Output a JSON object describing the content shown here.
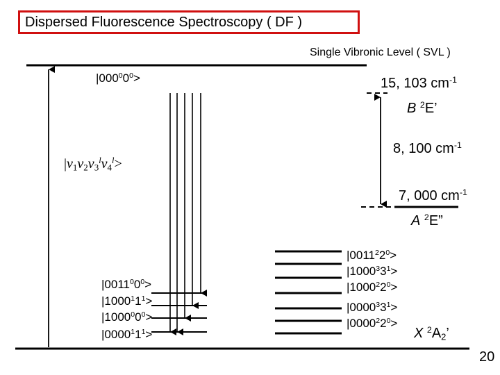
{
  "title": "Dispersed Fluorescence Spectroscopy ( DF )",
  "svl_label": "Single Vibronic Level ( SVL )",
  "excited_level": {
    "state": "|000",
    "sup1": "0",
    "mid": "0",
    "sup2": "0",
    "tail": ">"
  },
  "generic_level": {
    "open": "|",
    "nu": "ν",
    "s1": "1",
    "s2": "2",
    "s3": "3",
    "l": "l",
    "s4": "4",
    "tail": ">"
  },
  "b_energy": {
    "value": "15, 103 cm",
    "exp": "-1"
  },
  "b_state": {
    "letter": "B",
    "sup": "2",
    "term": "E’"
  },
  "gap_energy": {
    "value": "8, 100 cm",
    "exp": "-1"
  },
  "a_energy": {
    "value": "7, 000 cm",
    "exp": "-1"
  },
  "a_state": {
    "letter": "A",
    "sup": "2",
    "term": "E”"
  },
  "x_state": {
    "letter": "X",
    "sup": "2",
    "term": "A",
    "sub": "2",
    "prime": "’"
  },
  "page_number": "20",
  "left_levels": [
    {
      "a": "|0011",
      "s1": "0",
      "b": "0",
      "s2": "0",
      "c": ">"
    },
    {
      "a": "|1000",
      "s1": "1",
      "b": "1",
      "s2": "1",
      "c": ">"
    },
    {
      "a": "|1000",
      "s1": "0",
      "b": "0",
      "s2": "0",
      "c": ">"
    },
    {
      "a": "|0000",
      "s1": "1",
      "b": "1",
      "s2": "1",
      "c": ">"
    }
  ],
  "right_levels": [
    {
      "a": "|0011",
      "s1": "2",
      "b": "2",
      "s2": "0",
      "c": ">"
    },
    {
      "a": "|1000",
      "s1": "3",
      "b": "3",
      "s2": "1",
      "c": ">"
    },
    {
      "a": "|1000",
      "s1": "2",
      "b": "2",
      "s2": "0",
      "c": ">"
    },
    {
      "a": "|0000",
      "s1": "3",
      "b": "3",
      "s2": "1",
      "c": ">"
    },
    {
      "a": "|0000",
      "s1": "2",
      "b": "2",
      "s2": "0",
      "c": ">"
    }
  ]
}
